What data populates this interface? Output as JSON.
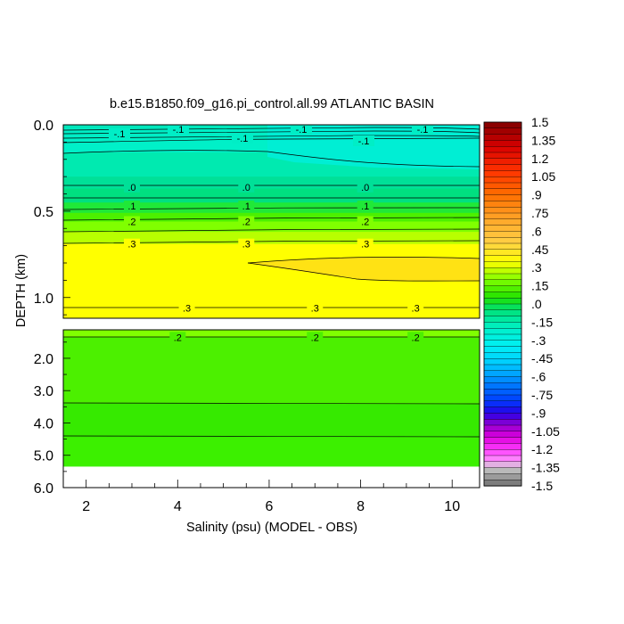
{
  "chart_data": {
    "type": "heatmap",
    "title": "b.e15.B1850.f09_g16.pi_control.all.99 ATLANTIC BASIN",
    "xlabel": "Salinity (psu) (MODEL - OBS)",
    "ylabel": "DEPTH (km)",
    "xlim": [
      1.5,
      10.6
    ],
    "x_ticks": [
      "2",
      "4",
      "6",
      "8",
      "10"
    ],
    "x_tick_values": [
      2,
      4,
      6,
      8,
      10
    ],
    "upper_panel": {
      "ylim": [
        0.0,
        1.12
      ],
      "y_ticks": [
        "0.0",
        "0.5",
        "1.0"
      ],
      "y_tick_values": [
        0.0,
        0.5,
        1.0
      ],
      "bands": [
        {
          "top": 0.0,
          "bottom": 0.02,
          "level": -0.2,
          "color": "#00e6ba"
        },
        {
          "top": 0.02,
          "bottom": 0.07,
          "level": -0.15,
          "color": "#00eec6"
        },
        {
          "top": 0.07,
          "bottom": 0.16,
          "level": -0.1,
          "color": "#00f0c8"
        },
        {
          "top": 0.16,
          "bottom": 0.3,
          "level": -0.05,
          "color": "#00eab0"
        },
        {
          "top": 0.3,
          "bottom": 0.37,
          "level": 0.0,
          "color": "#00e098"
        },
        {
          "top": 0.37,
          "bottom": 0.45,
          "level": 0.05,
          "color": "#00e080"
        },
        {
          "top": 0.45,
          "bottom": 0.51,
          "level": 0.1,
          "color": "#20e838"
        },
        {
          "top": 0.51,
          "bottom": 0.56,
          "level": 0.15,
          "color": "#4cf000"
        },
        {
          "top": 0.56,
          "bottom": 0.62,
          "level": 0.2,
          "color": "#80ff00"
        },
        {
          "top": 0.62,
          "bottom": 0.69,
          "level": 0.25,
          "color": "#b8ff00"
        },
        {
          "top": 0.69,
          "bottom": 1.12,
          "level": 0.3,
          "color": "#ffff00"
        }
      ],
      "contours": [
        {
          "label": "-.1",
          "label_x": [
            3.0,
            5.5,
            8.1
          ]
        },
        {
          "label": ".0",
          "label_x": [
            3.0,
            5.5,
            8.1
          ],
          "depth": 0.36
        },
        {
          "label": ".1",
          "label_x": [
            3.0,
            5.5,
            8.1
          ],
          "depth": 0.47
        },
        {
          "label": ".2",
          "label_x": [
            3.0,
            5.5,
            8.1
          ],
          "depth": 0.56
        },
        {
          "label": ".3",
          "label_x": [
            3.0,
            5.5,
            8.1
          ],
          "depth": 0.69
        },
        {
          "label": ".3",
          "label_x": [
            4.2,
            7.0,
            9.2
          ],
          "depth": 1.06
        }
      ],
      "near_surface_labels": [
        "-.1",
        "-.1",
        "-.1",
        "-.1",
        "-.1"
      ]
    },
    "lower_panel": {
      "ylim": [
        1.12,
        6.0
      ],
      "y_ticks": [
        "2.0",
        "3.0",
        "4.0",
        "5.0",
        "6.0"
      ],
      "y_tick_values": [
        2.0,
        3.0,
        4.0,
        5.0,
        6.0
      ],
      "bands": [
        {
          "top": 1.12,
          "bottom": 1.35,
          "level": 0.25,
          "color": "#80ff00"
        },
        {
          "top": 1.35,
          "bottom": 3.4,
          "level": 0.2,
          "color": "#4cf000"
        },
        {
          "top": 3.4,
          "bottom": 4.45,
          "level": 0.15,
          "color": "#36ea00"
        },
        {
          "top": 4.45,
          "bottom": 5.35,
          "level": 0.15,
          "color": "#3cf000"
        }
      ],
      "no_data_below": 5.35,
      "contours": [
        {
          "label": ".2",
          "label_x": [
            4.0,
            7.0,
            9.2
          ],
          "depth": 1.35
        }
      ]
    },
    "colorbar": {
      "min": -1.5,
      "max": 1.5,
      "step": 0.05,
      "labels": [
        "1.5",
        "1.35",
        "1.2",
        "1.05",
        ".9",
        ".75",
        ".6",
        ".45",
        ".3",
        ".15",
        ".0",
        "-.15",
        "-.3",
        "-.45",
        "-.6",
        "-.75",
        "-.9",
        "-1.05",
        "-1.2",
        "-1.35",
        "-1.5"
      ]
    }
  }
}
